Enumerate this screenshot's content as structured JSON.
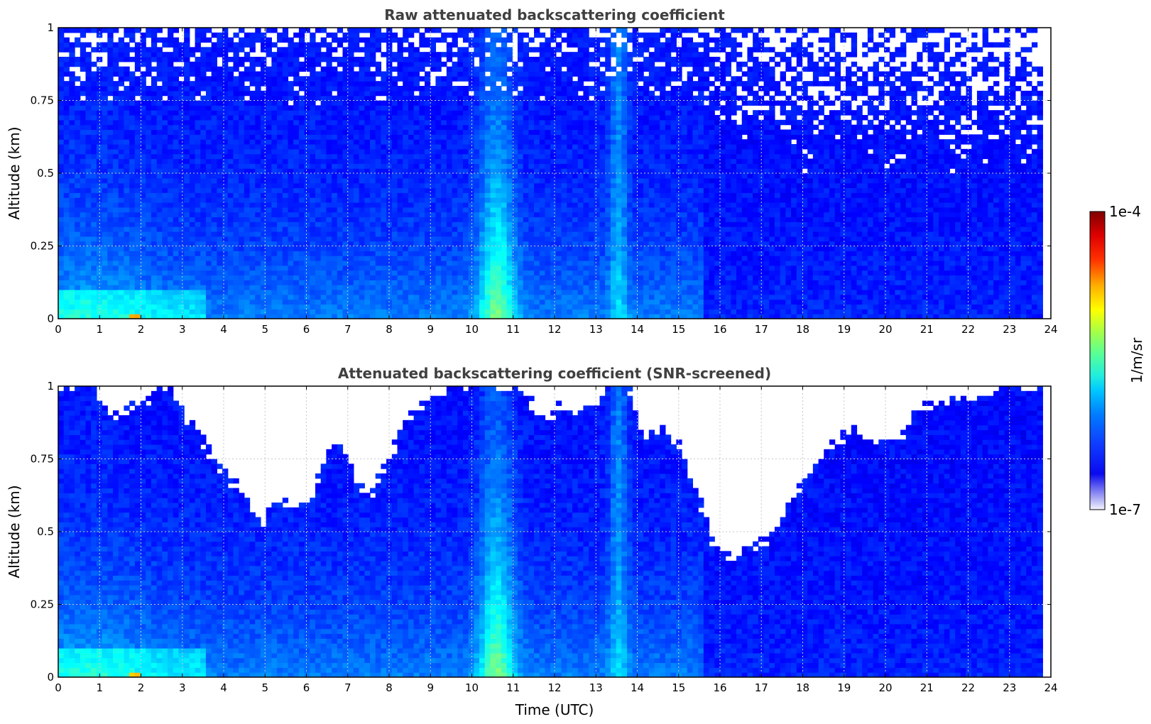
{
  "chart_data": [
    {
      "type": "heatmap",
      "title": "Raw attenuated backscattering coefficient",
      "xlabel": "",
      "ylabel": "Altitude (km)",
      "xlim": [
        0,
        24
      ],
      "ylim": [
        0,
        1
      ],
      "x_ticks": [
        "0",
        "1",
        "2",
        "3",
        "4",
        "5",
        "6",
        "7",
        "8",
        "9",
        "10",
        "11",
        "12",
        "13",
        "14",
        "15",
        "16",
        "17",
        "18",
        "19",
        "20",
        "21",
        "22",
        "23",
        "24"
      ],
      "y_ticks": [
        "0",
        "0.25",
        "0.5",
        "0.75",
        "1"
      ],
      "grid": true,
      "data_end_time": 23.8,
      "features": [
        {
          "time_range": [
            10.0,
            11.1
          ],
          "altitude_range": [
            0,
            0.6
          ],
          "level": "high",
          "note": "strong vertical column near 10.6"
        },
        {
          "time_range": [
            13.3,
            13.8
          ],
          "altitude_range": [
            0,
            1
          ],
          "level": "elevated"
        },
        {
          "time_range": [
            0,
            3.5
          ],
          "altitude_range": [
            0,
            0.1
          ],
          "level": "high",
          "note": "near-surface layer"
        },
        {
          "time_range": [
            1.7,
            2.0
          ],
          "altitude_range": [
            0,
            0.02
          ],
          "level": "peak"
        },
        {
          "time_range": [
            0,
            23.8
          ],
          "altitude_range": [
            0.6,
            1
          ],
          "level": "noisy"
        }
      ]
    },
    {
      "type": "heatmap",
      "title": "Attenuated backscattering coefficient (SNR-screened)",
      "xlabel": "Time (UTC)",
      "ylabel": "Altitude (km)",
      "xlim": [
        0,
        24
      ],
      "ylim": [
        0,
        1
      ],
      "x_ticks": [
        "0",
        "1",
        "2",
        "3",
        "4",
        "5",
        "6",
        "7",
        "8",
        "9",
        "10",
        "11",
        "12",
        "13",
        "14",
        "15",
        "16",
        "17",
        "18",
        "19",
        "20",
        "21",
        "22",
        "23",
        "24"
      ],
      "y_ticks": [
        "0",
        "0.25",
        "0.5",
        "0.75",
        "1"
      ],
      "grid": true,
      "data_end_time": 23.8,
      "screened_top_km": [
        [
          0,
          1.0
        ],
        [
          0.9,
          1.0
        ],
        [
          1.3,
          0.9
        ],
        [
          1.9,
          0.93
        ],
        [
          2.6,
          1.0
        ],
        [
          3.3,
          0.86
        ],
        [
          3.9,
          0.71
        ],
        [
          4.5,
          0.62
        ],
        [
          4.9,
          0.5
        ],
        [
          5.3,
          0.62
        ],
        [
          5.7,
          0.57
        ],
        [
          6.1,
          0.61
        ],
        [
          6.6,
          0.8
        ],
        [
          7.0,
          0.76
        ],
        [
          7.5,
          0.6
        ],
        [
          7.9,
          0.72
        ],
        [
          8.3,
          0.85
        ],
        [
          8.9,
          0.97
        ],
        [
          9.5,
          0.99
        ],
        [
          10.0,
          1.0
        ],
        [
          11.2,
          1.0
        ],
        [
          11.6,
          0.9
        ],
        [
          12.3,
          0.93
        ],
        [
          12.9,
          0.9
        ],
        [
          13.3,
          1.0
        ],
        [
          13.8,
          1.0
        ],
        [
          14.2,
          0.8
        ],
        [
          14.6,
          0.86
        ],
        [
          15.1,
          0.79
        ],
        [
          15.5,
          0.6
        ],
        [
          15.9,
          0.43
        ],
        [
          16.3,
          0.41
        ],
        [
          16.8,
          0.45
        ],
        [
          17.3,
          0.49
        ],
        [
          17.7,
          0.59
        ],
        [
          18.1,
          0.69
        ],
        [
          18.6,
          0.79
        ],
        [
          19.2,
          0.86
        ],
        [
          19.8,
          0.79
        ],
        [
          20.4,
          0.84
        ],
        [
          21.0,
          0.95
        ],
        [
          21.7,
          0.95
        ],
        [
          22.3,
          0.96
        ],
        [
          23.0,
          1.0
        ],
        [
          23.8,
          1.0
        ]
      ],
      "features": [
        {
          "time_range": [
            10.0,
            11.1
          ],
          "altitude_range": [
            0,
            0.7
          ],
          "level": "high"
        },
        {
          "time_range": [
            13.3,
            13.8
          ],
          "altitude_range": [
            0,
            1
          ],
          "level": "elevated"
        },
        {
          "time_range": [
            0,
            3.5
          ],
          "altitude_range": [
            0,
            0.1
          ],
          "level": "high"
        },
        {
          "time_range": [
            1.7,
            2.0
          ],
          "altitude_range": [
            0,
            0.02
          ],
          "level": "peak"
        }
      ]
    }
  ],
  "colorbar": {
    "label": "1/m/sr",
    "min_label": "1e-7",
    "max_label": "1e-4",
    "scale": "log",
    "colormap": "jet"
  }
}
